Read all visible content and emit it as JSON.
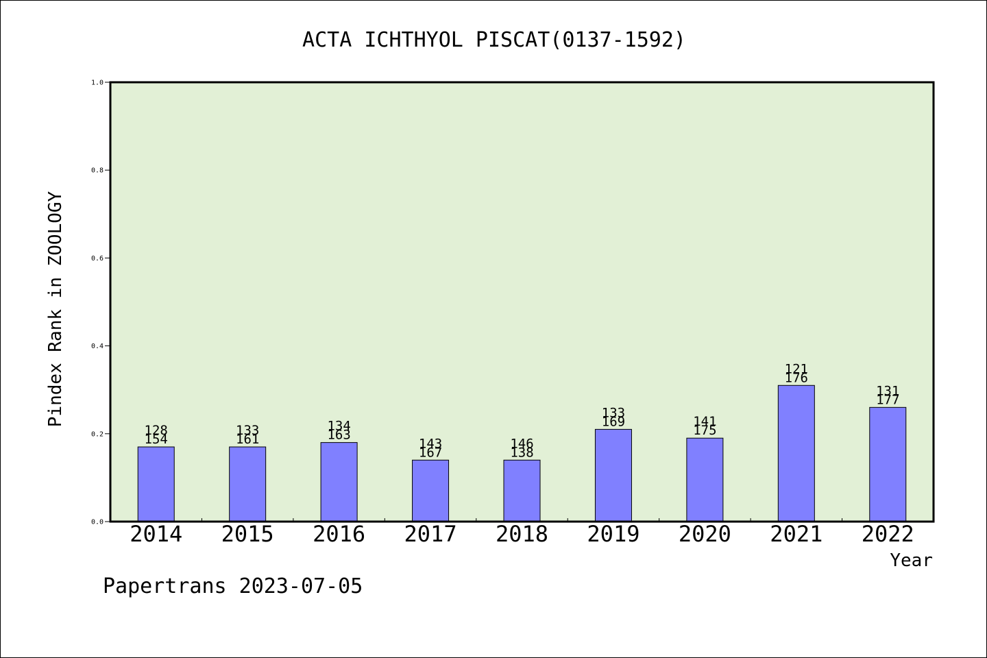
{
  "chart_data": {
    "type": "bar",
    "title": "ACTA ICHTHYOL PISCAT(0137-1592)",
    "xlabel": "Year",
    "ylabel": "Pindex Rank in ZOOLOGY",
    "ylim": [
      0,
      1.0
    ],
    "yticks": [
      "0.0",
      "0.2",
      "0.4",
      "0.6",
      "0.8",
      "1.0"
    ],
    "categories": [
      "2014",
      "2015",
      "2016",
      "2017",
      "2018",
      "2019",
      "2020",
      "2021",
      "2022"
    ],
    "values": [
      0.17,
      0.17,
      0.18,
      0.14,
      0.14,
      0.21,
      0.19,
      0.31,
      0.26
    ],
    "labels_top": [
      "128",
      "133",
      "134",
      "143",
      "146",
      "133",
      "141",
      "121",
      "131"
    ],
    "labels_bottom": [
      "154",
      "161",
      "163",
      "167",
      "138",
      "169",
      "175",
      "176",
      "177"
    ],
    "grid": false,
    "bar_color": "#8080ff",
    "plot_background": "#e2f0d6"
  },
  "footer": "Papertrans 2023-07-05"
}
